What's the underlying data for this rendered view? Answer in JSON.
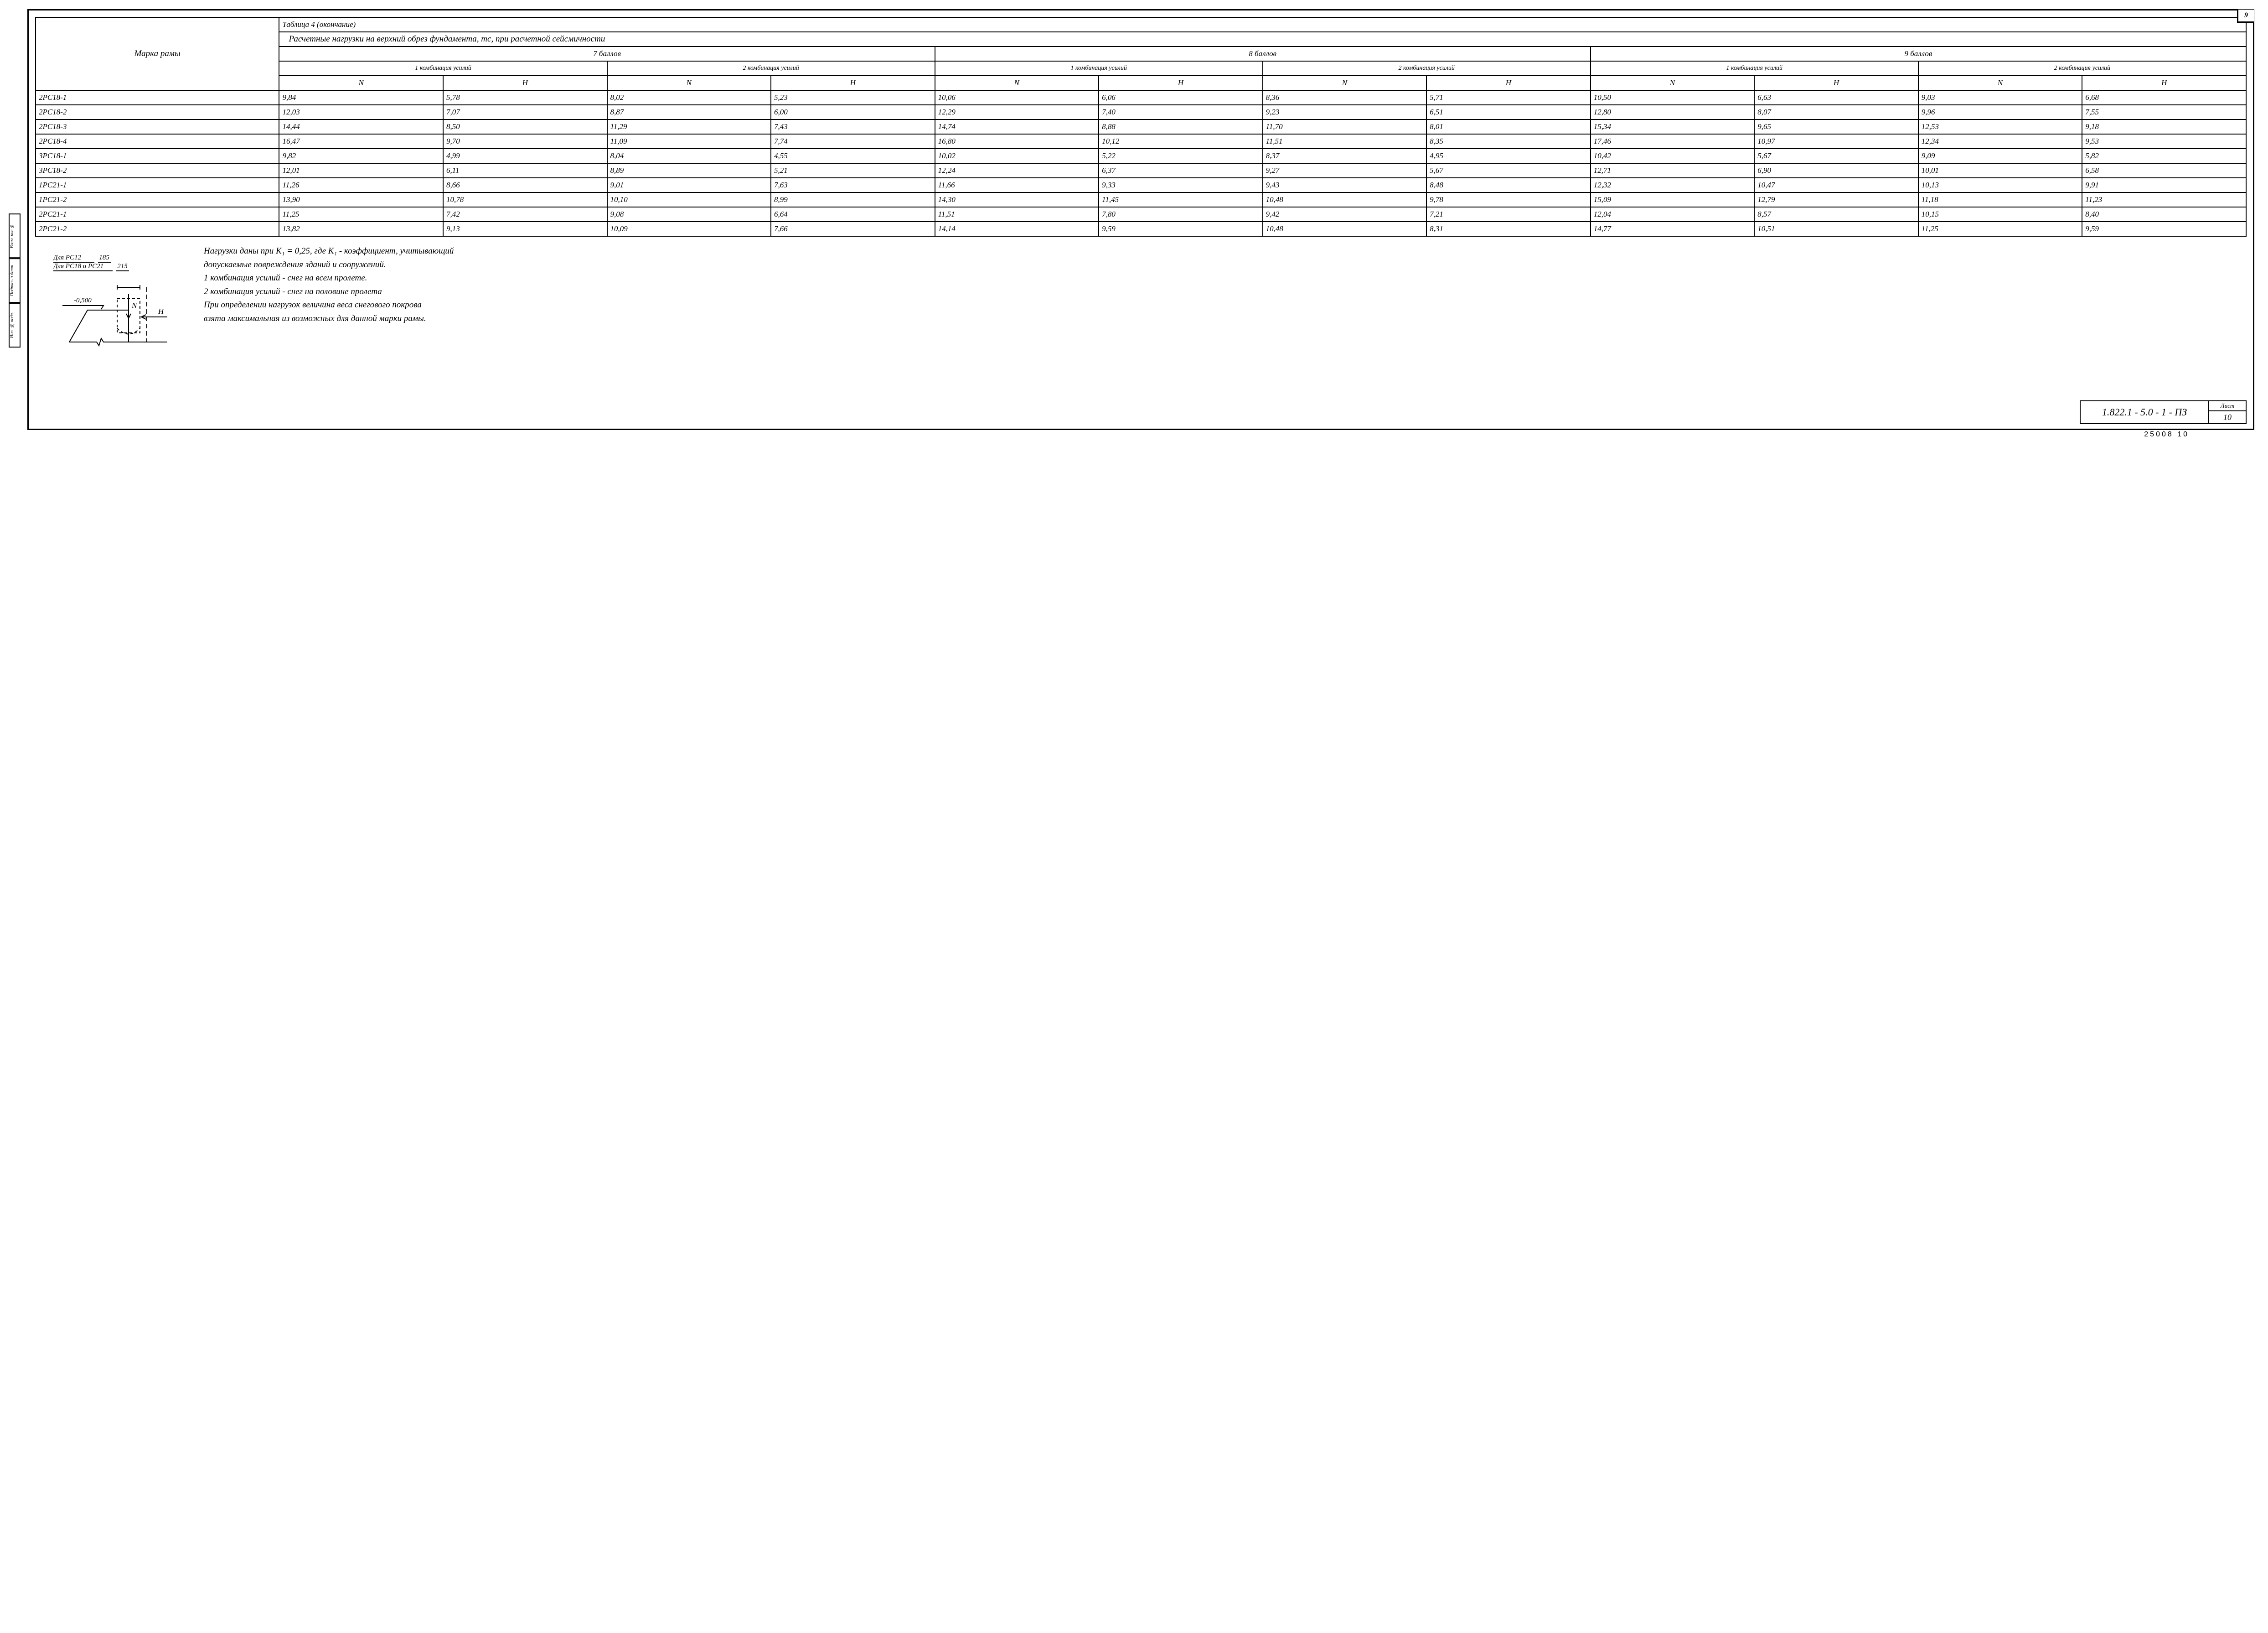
{
  "page_number_top": "9",
  "table_caption": "Таблица 4 (окончание)",
  "col_label": "Марка рамы",
  "header_main": "Расчетные нагрузки на верхний обрез фундамента, тс, при расчетной сейсмичности",
  "ball_headers": [
    "7 баллов",
    "8 баллов",
    "9 баллов"
  ],
  "combo_headers": [
    "1 комбинация усилий",
    "2 комбинация усилий"
  ],
  "nh": {
    "n": "N",
    "h": "H"
  },
  "rows": [
    {
      "label": "2РС18-1",
      "v": [
        "9,84",
        "5,78",
        "8,02",
        "5,23",
        "10,06",
        "6,06",
        "8,36",
        "5,71",
        "10,50",
        "6,63",
        "9,03",
        "6,68"
      ]
    },
    {
      "label": "2РС18-2",
      "v": [
        "12,03",
        "7,07",
        "8,87",
        "6,00",
        "12,29",
        "7,40",
        "9,23",
        "6,51",
        "12,80",
        "8,07",
        "9,96",
        "7,55"
      ]
    },
    {
      "label": "2РС18-3",
      "v": [
        "14,44",
        "8,50",
        "11,29",
        "7,43",
        "14,74",
        "8,88",
        "11,70",
        "8,01",
        "15,34",
        "9,65",
        "12,53",
        "9,18"
      ]
    },
    {
      "label": "2РС18-4",
      "v": [
        "16,47",
        "9,70",
        "11,09",
        "7,74",
        "16,80",
        "10,12",
        "11,51",
        "8,35",
        "17,46",
        "10,97",
        "12,34",
        "9,53"
      ]
    },
    {
      "label": "3РС18-1",
      "v": [
        "9,82",
        "4,99",
        "8,04",
        "4,55",
        "10,02",
        "5,22",
        "8,37",
        "4,95",
        "10,42",
        "5,67",
        "9,09",
        "5,82"
      ]
    },
    {
      "label": "3РС18-2",
      "v": [
        "12,01",
        "6,11",
        "8,89",
        "5,21",
        "12,24",
        "6,37",
        "9,27",
        "5,67",
        "12,71",
        "6,90",
        "10,01",
        "6,58"
      ]
    },
    {
      "label": "1РС21-1",
      "v": [
        "11,26",
        "8,66",
        "9,01",
        "7,63",
        "11,66",
        "9,33",
        "9,43",
        "8,48",
        "12,32",
        "10,47",
        "10,13",
        "9,91"
      ]
    },
    {
      "label": "1РС21-2",
      "v": [
        "13,90",
        "10,78",
        "10,10",
        "8,99",
        "14,30",
        "11,45",
        "10,48",
        "9,78",
        "15,09",
        "12,79",
        "11,18",
        "11,23"
      ]
    },
    {
      "label": "2РС21-1",
      "v": [
        "11,25",
        "7,42",
        "9,08",
        "6,64",
        "11,51",
        "7,80",
        "9,42",
        "7,21",
        "12,04",
        "8,57",
        "10,15",
        "8,40"
      ]
    },
    {
      "label": "2РС21-2",
      "v": [
        "13,82",
        "9,13",
        "10,09",
        "7,66",
        "14,14",
        "9,59",
        "10,48",
        "8,31",
        "14,77",
        "10,51",
        "11,25",
        "9,59"
      ]
    }
  ],
  "diagram": {
    "line1": "Для РС12",
    "dim1": "185",
    "line2": "Для РС18 и РС21",
    "dim2": "215",
    "elev": "-0,500",
    "N": "N",
    "H": "H"
  },
  "notes": [
    "Нагрузки даны при K₁ = 0,25, где K₁ - коэффициент, учитывающий",
    "допускаемые повреждения зданий и сооружений.",
    "1 комбинация усилий - снег на всем пролете.",
    "2 комбинация усилий - снег на половине пролета",
    "При определении нагрузок величина веса снегового покрова",
    "взята максимальная из возможных для данной марки рамы."
  ],
  "titleblock": {
    "code": "1.822.1 - 5.0 - 1 - ПЗ",
    "sheet_label": "Лист",
    "sheet_num": "10"
  },
  "footer": "25008    10",
  "sidestrip": [
    "Инв. № подл.",
    "Подпись и дата",
    "Взам. инв.№"
  ],
  "colors": {
    "ink": "#000000",
    "paper": "#ffffff"
  },
  "stroke_width": 2
}
